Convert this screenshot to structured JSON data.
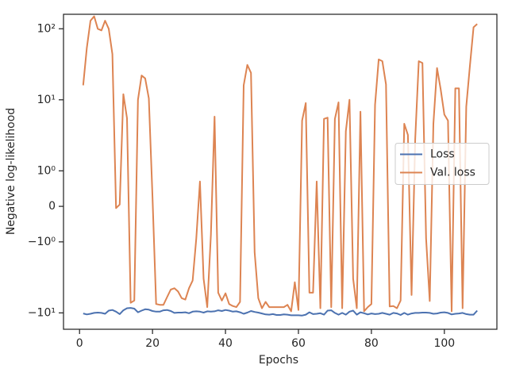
{
  "chart_data": {
    "type": "line",
    "xlabel": "Epochs",
    "ylabel": "Negative log-likelihood",
    "yscale": "symlog",
    "linthresh": 1,
    "x": [
      1,
      2,
      3,
      4,
      5,
      6,
      7,
      8,
      9,
      10,
      11,
      12,
      13,
      14,
      15,
      16,
      17,
      18,
      19,
      20,
      21,
      22,
      23,
      24,
      25,
      26,
      27,
      28,
      29,
      30,
      31,
      32,
      33,
      34,
      35,
      36,
      37,
      38,
      39,
      40,
      41,
      42,
      43,
      44,
      45,
      46,
      47,
      48,
      49,
      50,
      51,
      52,
      53,
      54,
      55,
      56,
      57,
      58,
      59,
      60,
      61,
      62,
      63,
      64,
      65,
      66,
      67,
      68,
      69,
      70,
      71,
      72,
      73,
      74,
      75,
      76,
      77,
      78,
      79,
      80,
      81,
      82,
      83,
      84,
      85,
      86,
      87,
      88,
      89,
      90,
      91,
      92,
      93,
      94,
      95,
      96,
      97,
      98,
      99,
      100,
      101,
      102,
      103,
      104,
      105,
      106,
      107,
      108,
      109
    ],
    "series": [
      {
        "name": "Loss",
        "color": "#4c72b0",
        "values": [
          -10.2,
          -10.5,
          -10.3,
          -10.0,
          -9.9,
          -10.0,
          -10.3,
          -9.3,
          -9.1,
          -9.6,
          -10.4,
          -9.2,
          -8.6,
          -8.5,
          -8.7,
          -9.8,
          -9.3,
          -8.9,
          -9.0,
          -9.4,
          -9.6,
          -9.6,
          -9.2,
          -9.1,
          -9.4,
          -10.0,
          -9.9,
          -9.9,
          -9.8,
          -10.1,
          -9.6,
          -9.5,
          -9.6,
          -9.9,
          -9.5,
          -9.6,
          -9.5,
          -9.2,
          -9.4,
          -9.1,
          -9.3,
          -9.6,
          -9.5,
          -9.8,
          -10.3,
          -9.9,
          -9.4,
          -9.7,
          -9.9,
          -10.2,
          -10.5,
          -10.6,
          -10.4,
          -10.7,
          -10.7,
          -10.5,
          -10.6,
          -10.8,
          -10.8,
          -10.8,
          -10.9,
          -10.6,
          -9.8,
          -10.4,
          -10.3,
          -10.1,
          -10.6,
          -9.3,
          -9.2,
          -10.0,
          -10.6,
          -10.0,
          -10.6,
          -9.6,
          -9.3,
          -10.6,
          -9.8,
          -10.1,
          -10.5,
          -10.2,
          -10.4,
          -10.3,
          -10.0,
          -10.3,
          -10.6,
          -10.0,
          -10.2,
          -10.7,
          -10.0,
          -10.6,
          -10.2,
          -10.0,
          -10.0,
          -9.9,
          -9.9,
          -10.0,
          -10.3,
          -10.2,
          -9.9,
          -9.8,
          -10.0,
          -10.5,
          -10.3,
          -10.2,
          -10.0,
          -10.4,
          -10.6,
          -10.6,
          -9.3
        ]
      },
      {
        "name": "Val. loss",
        "color": "#dd8452",
        "values": [
          16,
          54,
          130,
          150,
          100,
          95,
          130,
          100,
          44,
          -0.05,
          0.05,
          12,
          5.5,
          -7.2,
          -6.7,
          10,
          22,
          20,
          10.5,
          0.28,
          -7.5,
          -7.7,
          -7.7,
          -6,
          -4.7,
          -4.5,
          -5,
          -6.2,
          -6.5,
          -4.5,
          -3.5,
          -0.9,
          0.7,
          -3.3,
          -8.3,
          -0.8,
          5.8,
          -5.2,
          -6.7,
          -5.3,
          -7.5,
          -8,
          -8.3,
          -7,
          16,
          31,
          24,
          -1.4,
          -6.2,
          -8.6,
          -7,
          -8.3,
          -8.3,
          -8.3,
          -8.3,
          -8.3,
          -7.7,
          -9.5,
          -3.7,
          -9.1,
          5.1,
          9,
          -5.2,
          -5.2,
          0.7,
          -8.6,
          5.4,
          5.6,
          -8.3,
          5.4,
          9.2,
          -8.6,
          3.6,
          10,
          -3.3,
          -8.6,
          6.8,
          -9.5,
          -8.3,
          -7.5,
          8.5,
          37,
          35,
          16.5,
          -8.1,
          -8,
          -8.6,
          -6.7,
          4.6,
          3.2,
          -5.6,
          2.8,
          35,
          33,
          -0.9,
          -6.8,
          4.6,
          28,
          14,
          6.2,
          5.1,
          -9.5,
          14.5,
          14.5,
          -8.6,
          8,
          30,
          105,
          117
        ]
      }
    ],
    "xlim": [
      -4.4,
      114.4
    ],
    "xticks": [
      0,
      20,
      40,
      60,
      80,
      100
    ],
    "ylim": [
      -17,
      160
    ],
    "yticks": [
      {
        "value": -10,
        "label": "−10¹"
      },
      {
        "value": -1,
        "label": "−10⁰"
      },
      0,
      {
        "value": 1,
        "label": "10⁰"
      },
      {
        "value": 10,
        "label": "10¹"
      },
      {
        "value": 100,
        "label": "10²"
      }
    ],
    "legend": "center right"
  }
}
